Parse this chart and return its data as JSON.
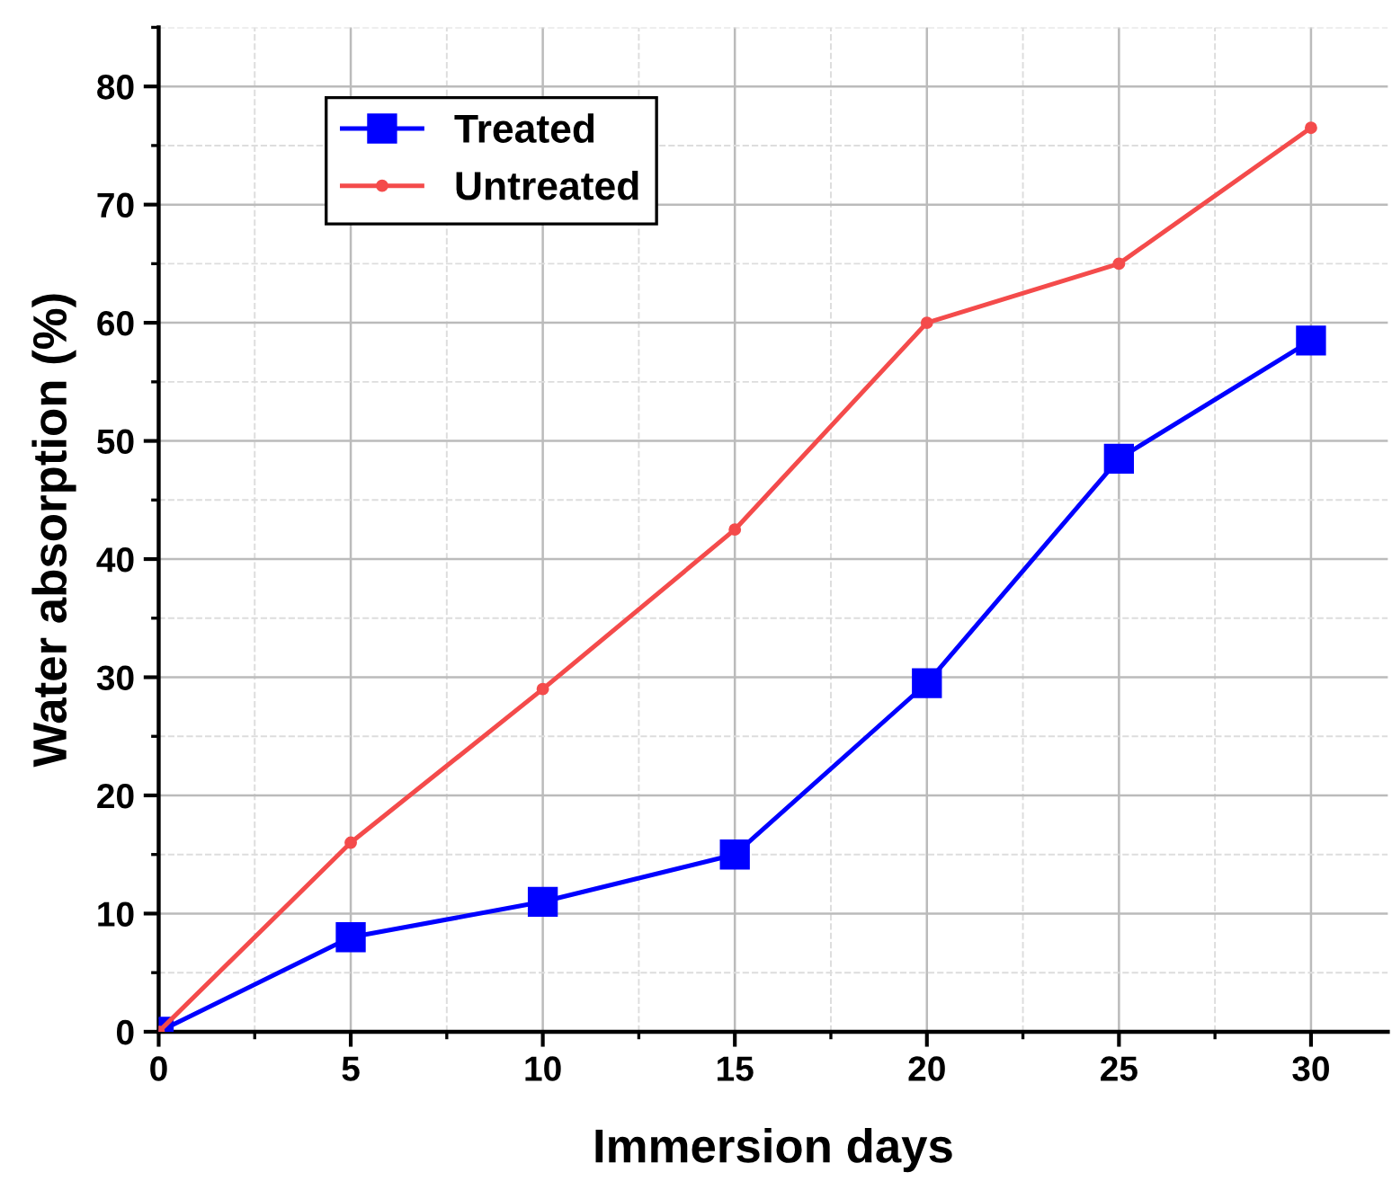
{
  "chart_data": {
    "type": "line",
    "xlabel": "Immersion days",
    "ylabel": "Water absorption (%)",
    "x": [
      0,
      5,
      10,
      15,
      20,
      25,
      30
    ],
    "series": [
      {
        "name": "Treated",
        "color": "#0000ff",
        "marker": "square",
        "values": [
          0,
          8,
          11,
          15,
          29.5,
          48.5,
          58.5
        ]
      },
      {
        "name": "Untreated",
        "color": "#f44b4b",
        "marker": "circle",
        "values": [
          0,
          16,
          29,
          42.5,
          60,
          65,
          76.5
        ]
      }
    ],
    "xlim": [
      0,
      32
    ],
    "xticks": [
      0,
      5,
      10,
      15,
      20,
      25,
      30
    ],
    "ylim": [
      0,
      85
    ],
    "yticks": [
      0,
      10,
      20,
      30,
      40,
      50,
      60,
      70,
      80
    ],
    "grid": true,
    "legend": "top left",
    "line_style": "solid"
  }
}
